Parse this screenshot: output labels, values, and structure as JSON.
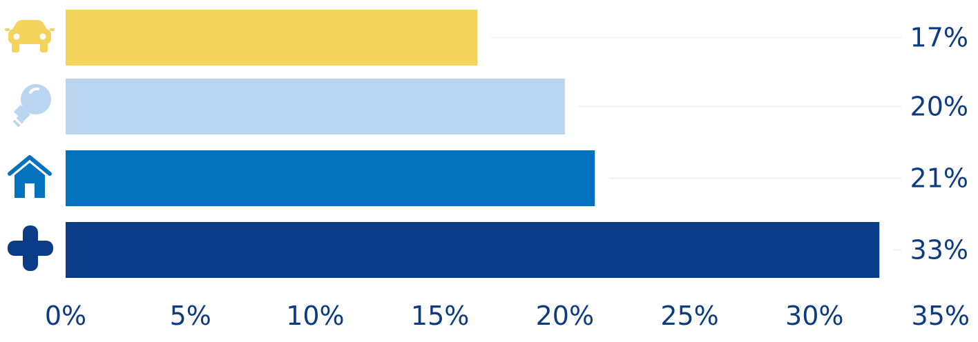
{
  "chart_data": {
    "type": "bar",
    "orientation": "horizontal",
    "title": "",
    "xlabel": "",
    "ylabel": "",
    "xlim": [
      0,
      35
    ],
    "ticks": [
      "0%",
      "5%",
      "10%",
      "15%",
      "20%",
      "25%",
      "30%",
      "35%"
    ],
    "tick_values": [
      0,
      5,
      10,
      15,
      20,
      25,
      30,
      35
    ],
    "grid": false,
    "legend": "none",
    "categories": [
      {
        "icon": "car-icon",
        "value": 16.5,
        "label": "17%",
        "color": "#f3d35c"
      },
      {
        "icon": "lightbulb-icon",
        "value": 20,
        "label": "20%",
        "color": "#b9d5ef"
      },
      {
        "icon": "house-icon",
        "value": 21.2,
        "label": "21%",
        "color": "#0272bf"
      },
      {
        "icon": "medical-cross-icon",
        "value": 32.6,
        "label": "33%",
        "color": "#0b3c87"
      }
    ]
  }
}
